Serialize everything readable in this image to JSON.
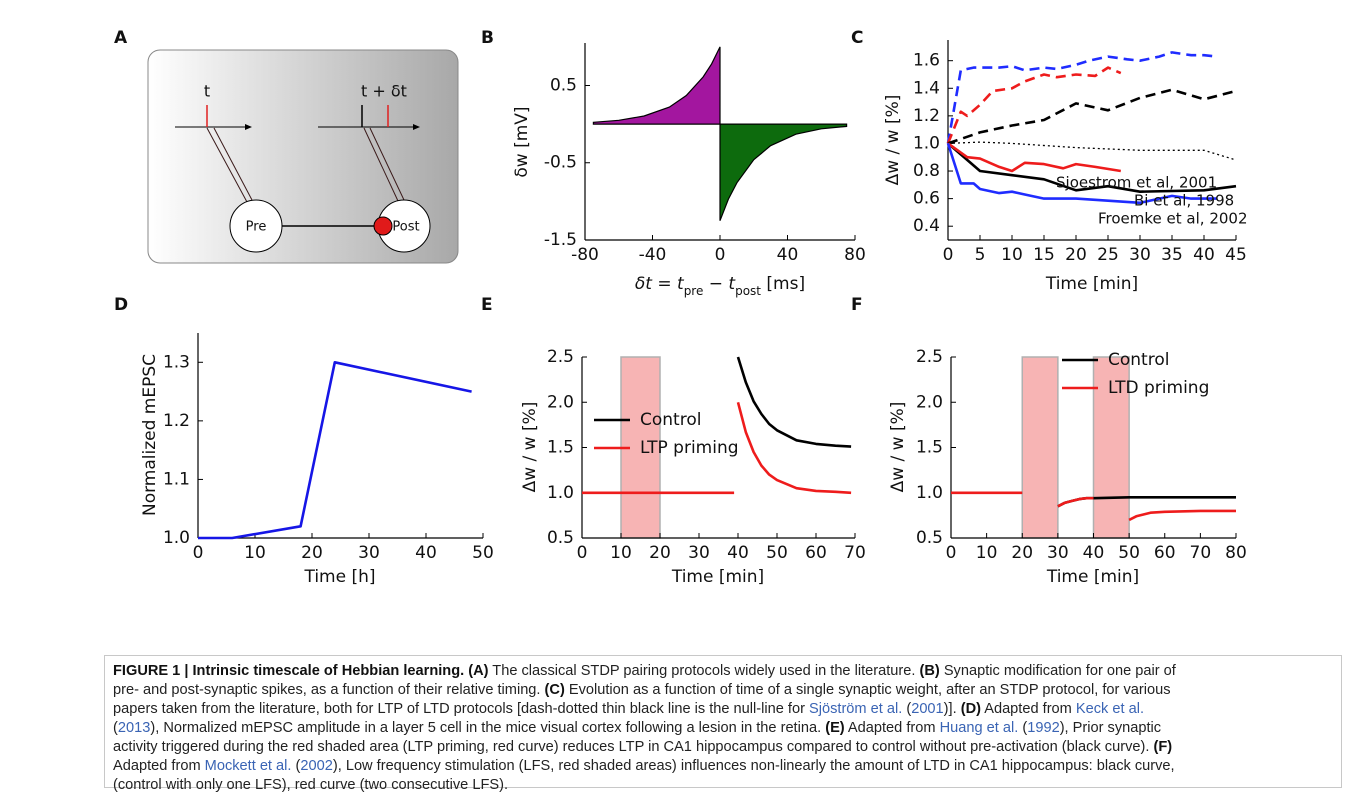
{
  "diagram": {
    "panel_label": "A",
    "pre_time_label": "t",
    "post_time_label": "t + δt",
    "pre_label": "Pre",
    "post_label": "Post"
  },
  "chart_data": [
    {
      "type": "area",
      "panel_label": "B",
      "x_label_parts": [
        "δt = t",
        "pre",
        " − t",
        "post",
        " [ms]"
      ],
      "y_label": "δw [mV]",
      "xlim": [
        -80,
        80
      ],
      "ylim": [
        -1.5,
        1.05
      ],
      "xticks": [
        -80,
        -40,
        0,
        40,
        80
      ],
      "yticks": [
        0.5,
        -0.5,
        -1.5
      ],
      "series": [
        {
          "color": "#a3169f",
          "x": [
            -75,
            -60,
            -45,
            -30,
            -20,
            -10,
            -5,
            0
          ],
          "values": [
            0.024,
            0.05,
            0.105,
            0.22,
            0.37,
            0.61,
            0.78,
            1.0
          ]
        },
        {
          "color": "#0d6b0d",
          "x": [
            0,
            5,
            10,
            20,
            30,
            45,
            60,
            75
          ],
          "values": [
            -1.25,
            -0.97,
            -0.76,
            -0.46,
            -0.28,
            -0.13,
            -0.06,
            -0.03
          ]
        }
      ]
    },
    {
      "type": "line",
      "panel_label": "C",
      "x_label": "Time [min]",
      "y_label": "Δw / w [%]",
      "xlim": [
        0,
        45
      ],
      "ylim": [
        0.3,
        1.75
      ],
      "xticks": [
        0,
        5,
        10,
        15,
        20,
        25,
        30,
        35,
        40,
        45
      ],
      "yticks": [
        0.4,
        0.6,
        0.8,
        {
          "value": 1,
          "label": "1.0"
        },
        1.2,
        1.4,
        1.6
      ],
      "series": [
        {
          "color": "#1f2cff",
          "dash": "dashed",
          "x": [
            0,
            2,
            4,
            6,
            8,
            10,
            12,
            15,
            17,
            20,
            22,
            25,
            28,
            30,
            33,
            35,
            38,
            40,
            42
          ],
          "values": [
            1.0,
            1.53,
            1.55,
            1.55,
            1.55,
            1.56,
            1.53,
            1.55,
            1.54,
            1.57,
            1.6,
            1.63,
            1.61,
            1.6,
            1.63,
            1.66,
            1.64,
            1.64,
            1.63
          ]
        },
        {
          "color": "#ee1c1c",
          "dash": "dashed",
          "x": [
            0,
            2,
            3,
            5,
            7,
            10,
            12,
            15,
            17,
            20,
            23,
            25,
            27
          ],
          "values": [
            1.0,
            1.23,
            1.2,
            1.28,
            1.38,
            1.4,
            1.45,
            1.5,
            1.48,
            1.5,
            1.49,
            1.55,
            1.51
          ]
        },
        {
          "color": "#000000",
          "dash": "dashed",
          "x": [
            0,
            5,
            10,
            15,
            20,
            25,
            30,
            35,
            40,
            45
          ],
          "values": [
            1.0,
            1.08,
            1.13,
            1.17,
            1.29,
            1.24,
            1.33,
            1.39,
            1.32,
            1.38
          ]
        },
        {
          "color": "#000000",
          "dash": "dotted",
          "x": [
            0,
            5,
            10,
            20,
            30,
            40,
            45
          ],
          "values": [
            1.0,
            1.01,
            1.0,
            0.97,
            0.95,
            0.95,
            0.88
          ]
        },
        {
          "color": "#000000",
          "dash": "solid",
          "x": [
            0,
            5,
            10,
            15,
            20,
            25,
            30,
            40,
            45
          ],
          "values": [
            1.0,
            0.8,
            0.77,
            0.74,
            0.66,
            0.69,
            0.65,
            0.66,
            0.69
          ]
        },
        {
          "color": "#ee1c1c",
          "dash": "solid",
          "x": [
            0,
            3,
            5,
            8,
            10,
            12,
            15,
            18,
            20,
            23,
            27
          ],
          "values": [
            1.0,
            0.9,
            0.89,
            0.83,
            0.8,
            0.86,
            0.85,
            0.82,
            0.85,
            0.83,
            0.8
          ]
        },
        {
          "color": "#1f2cff",
          "dash": "solid",
          "x": [
            0,
            2,
            4,
            5,
            8,
            10,
            12,
            15,
            20,
            30,
            35,
            38,
            42
          ],
          "values": [
            1.0,
            0.71,
            0.71,
            0.67,
            0.64,
            0.65,
            0.63,
            0.6,
            0.6,
            0.57,
            0.62,
            0.6,
            0.6
          ]
        }
      ],
      "annotations": [
        {
          "text": "Sjoestrom et al, 2001",
          "color": "#000000"
        },
        {
          "text": "Bi et al, 1998",
          "color": "#ee1c1c"
        },
        {
          "text": "Froemke et al, 2002",
          "color": "#1f2cff"
        }
      ]
    },
    {
      "type": "line",
      "panel_label": "D",
      "x_label": "Time [h]",
      "y_label": "Normalized mEPSC",
      "xlim": [
        0,
        50
      ],
      "ylim": [
        1.0,
        1.35
      ],
      "xticks": [
        0,
        10,
        20,
        30,
        40,
        50
      ],
      "yticks": [
        {
          "value": 1,
          "label": "1.0"
        },
        1.1,
        1.2,
        1.3
      ],
      "series": [
        {
          "color": "#1616e6",
          "dash": "solid",
          "x": [
            0,
            6,
            18,
            24,
            48
          ],
          "values": [
            1.0,
            1.0,
            1.02,
            1.3,
            1.25
          ]
        }
      ]
    },
    {
      "type": "line",
      "panel_label": "E",
      "x_label": "Time [min]",
      "y_label": "Δw / w [%]",
      "xlim": [
        0,
        70
      ],
      "ylim": [
        0.5,
        2.5
      ],
      "xticks": [
        0,
        10,
        20,
        30,
        40,
        50,
        60,
        70
      ],
      "yticks": [
        0.5,
        {
          "value": 1,
          "label": "1.0"
        },
        1.5,
        {
          "value": 2,
          "label": "2.0"
        },
        2.5
      ],
      "shaded_regions": [
        [
          10,
          20
        ]
      ],
      "shade_color": "#f7b4b4",
      "legend": "center left",
      "series": [
        {
          "name": "Control",
          "color": "#000000",
          "segments": [
            {
              "x": [
                40,
                42,
                44,
                46,
                48,
                50,
                55,
                60,
                65,
                69
              ],
              "values": [
                2.5,
                2.22,
                2.01,
                1.87,
                1.76,
                1.69,
                1.58,
                1.54,
                1.52,
                1.51
              ]
            }
          ]
        },
        {
          "name": "LTP priming",
          "color": "#ee1c1c",
          "segments": [
            {
              "x": [
                0,
                39
              ],
              "values": [
                1.0,
                1.0
              ]
            },
            {
              "x": [
                40,
                42,
                44,
                46,
                48,
                50,
                55,
                60,
                65,
                69
              ],
              "values": [
                2.0,
                1.67,
                1.45,
                1.3,
                1.2,
                1.14,
                1.05,
                1.02,
                1.01,
                1.0
              ]
            }
          ]
        }
      ]
    },
    {
      "type": "line",
      "panel_label": "F",
      "x_label": "Time [min]",
      "y_label": "Δw / w [%]",
      "xlim": [
        0,
        80
      ],
      "ylim": [
        0.5,
        2.5
      ],
      "xticks": [
        0,
        10,
        20,
        30,
        40,
        50,
        60,
        70,
        80
      ],
      "yticks": [
        0.5,
        {
          "value": 1,
          "label": "1.0"
        },
        1.5,
        {
          "value": 2,
          "label": "2.0"
        },
        2.5
      ],
      "shaded_regions": [
        [
          20,
          30
        ],
        [
          40,
          50
        ]
      ],
      "shade_color": "#f7b4b4",
      "legend": "upper center",
      "series": [
        {
          "name": "Control",
          "color": "#000000",
          "segments": [
            {
              "x": [
                30,
                32,
                34,
                36,
                38,
                40,
                50,
                60,
                70,
                80
              ],
              "values": [
                0.85,
                0.89,
                0.91,
                0.93,
                0.94,
                0.94,
                0.95,
                0.95,
                0.95,
                0.95
              ]
            }
          ]
        },
        {
          "name": "LTD priming",
          "color": "#ee1c1c",
          "segments": [
            {
              "x": [
                0,
                20
              ],
              "values": [
                1.0,
                1.0
              ]
            },
            {
              "x": [
                30,
                32,
                34,
                36,
                38,
                40
              ],
              "values": [
                0.85,
                0.89,
                0.91,
                0.93,
                0.94,
                0.94
              ]
            },
            {
              "x": [
                50,
                52,
                54,
                56,
                60,
                70,
                80
              ],
              "values": [
                0.7,
                0.74,
                0.76,
                0.78,
                0.79,
                0.8,
                0.8
              ]
            }
          ]
        }
      ]
    }
  ],
  "caption": {
    "lines": [
      [
        {
          "text": "FIGURE 1 | Intrinsic timescale of Hebbian learning.",
          "style": "bold"
        },
        {
          "text": " ",
          "style": "plain"
        },
        {
          "text": "(A)",
          "style": "bold"
        },
        {
          "text": " The classical STDP pairing protocols widely used in the literature. ",
          "style": "plain"
        },
        {
          "text": "(B)",
          "style": "bold"
        },
        {
          "text": " Synaptic modification for one pair of",
          "style": "plain"
        }
      ],
      [
        {
          "text": "pre- and post-synaptic spikes, as a function of their relative timing. ",
          "style": "plain"
        },
        {
          "text": "(C)",
          "style": "bold"
        },
        {
          "text": " Evolution as a function of time of a single synaptic weight, after an STDP protocol, for various",
          "style": "plain"
        }
      ],
      [
        {
          "text": "papers taken from the literature, both for LTP of LTD protocols [dash-dotted thin black line is the null-line for ",
          "style": "plain"
        },
        {
          "text": "Sjöström et al.",
          "style": "link"
        },
        {
          "text": " (",
          "style": "plain"
        },
        {
          "text": "2001",
          "style": "link"
        },
        {
          "text": ")]. ",
          "style": "plain"
        },
        {
          "text": "(D)",
          "style": "bold"
        },
        {
          "text": " Adapted from ",
          "style": "plain"
        },
        {
          "text": "Keck et al.",
          "style": "link"
        }
      ],
      [
        {
          "text": "(",
          "style": "plain"
        },
        {
          "text": "2013",
          "style": "link"
        },
        {
          "text": "), Normalized mEPSC amplitude in a layer 5 cell in the mice visual cortex following a lesion in the retina. ",
          "style": "plain"
        },
        {
          "text": "(E)",
          "style": "bold"
        },
        {
          "text": " Adapted from ",
          "style": "plain"
        },
        {
          "text": "Huang et al.",
          "style": "link"
        },
        {
          "text": " (",
          "style": "plain"
        },
        {
          "text": "1992",
          "style": "link"
        },
        {
          "text": "), Prior synaptic",
          "style": "plain"
        }
      ],
      [
        {
          "text": "activity triggered during the red shaded area (LTP priming, red curve) reduces LTP in CA1 hippocampus compared to control without pre-activation (black curve). ",
          "style": "plain"
        },
        {
          "text": "(F)",
          "style": "bold"
        }
      ],
      [
        {
          "text": "Adapted from ",
          "style": "plain"
        },
        {
          "text": "Mockett et al.",
          "style": "link"
        },
        {
          "text": " (",
          "style": "plain"
        },
        {
          "text": "2002",
          "style": "link"
        },
        {
          "text": "), Low frequency stimulation (LFS, red shaded areas) influences non-linearly the amount of LTD in CA1 hippocampus: black curve,",
          "style": "plain"
        }
      ],
      [
        {
          "text": "(control with only one LFS), red curve (two consecutive LFS).",
          "style": "plain"
        }
      ]
    ]
  }
}
